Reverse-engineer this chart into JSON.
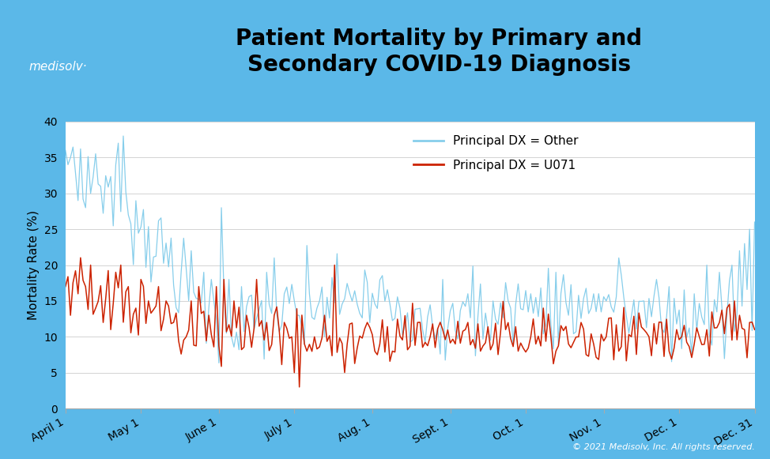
{
  "title": "Patient Mortality by Primary and\nSecondary COVID-19 Diagnosis",
  "ylabel": "Mortality Rate (%)",
  "header_color": "#5BB8E8",
  "plot_bg_color": "#FFFFFF",
  "outer_bg_color": "#5BB8E8",
  "grid_color": "#CCCCCC",
  "line_other_color": "#87CEEB",
  "line_u071_color": "#CC2200",
  "legend_other": "Principal DX = Other",
  "legend_u071": "Principal DX = U071",
  "xtick_labels": [
    "April 1",
    "May 1",
    "June 1",
    "July 1",
    "Aug. 1",
    "Sept. 1",
    "Oct. 1",
    "Nov. 1",
    "Dec. 1",
    "Dec. 31"
  ],
  "xtick_positions": [
    0,
    30,
    61,
    91,
    122,
    153,
    183,
    214,
    244,
    274
  ],
  "ylim": [
    0,
    40
  ],
  "yticks": [
    0,
    5,
    10,
    15,
    20,
    25,
    30,
    35,
    40
  ],
  "copyright": "© 2021 Medisolv, Inc. All rights reserved.",
  "title_fontsize": 20,
  "axis_fontsize": 11,
  "tick_fontsize": 10,
  "n_days": 275
}
